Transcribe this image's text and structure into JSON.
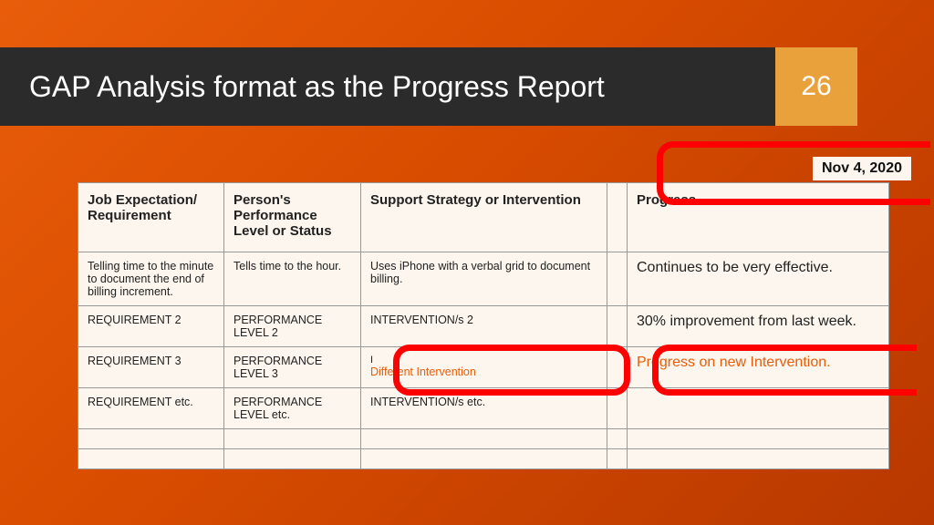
{
  "header": {
    "title": "GAP Analysis format as the Progress Report",
    "slide_number": "26"
  },
  "date_tag": "Nov 4, 2020",
  "table": {
    "columns": [
      "Job Expectation/ Requirement",
      "Person's Performance Level or Status",
      "Support Strategy or Intervention",
      "Progress"
    ],
    "rows": [
      {
        "req": "Telling time to the minute to document the end of billing increment.",
        "perf": "Tells time to the hour.",
        "intv": "Uses iPhone with a verbal grid to document billing.",
        "prog": "Continues to be very effective."
      },
      {
        "req": "REQUIREMENT 2",
        "perf": "PERFORMANCE LEVEL 2",
        "intv": "INTERVENTION/s 2",
        "prog": "30% improvement from last week."
      },
      {
        "req": "REQUIREMENT 3",
        "perf": "PERFORMANCE LEVEL 3",
        "intv_highlight": "Different Intervention",
        "prog_highlight": "Progress on new Intervention."
      },
      {
        "req": "REQUIREMENT etc.",
        "perf": "PERFORMANCE LEVEL etc.",
        "intv": "INTERVENTION/s etc.",
        "prog": ""
      }
    ]
  },
  "colors": {
    "header_bg": "#2b2b2b",
    "accent_orange": "#e9a23b",
    "highlight_red": "#ff0000",
    "highlight_text": "#e85d0a",
    "table_bg": "#fdf6ee"
  }
}
